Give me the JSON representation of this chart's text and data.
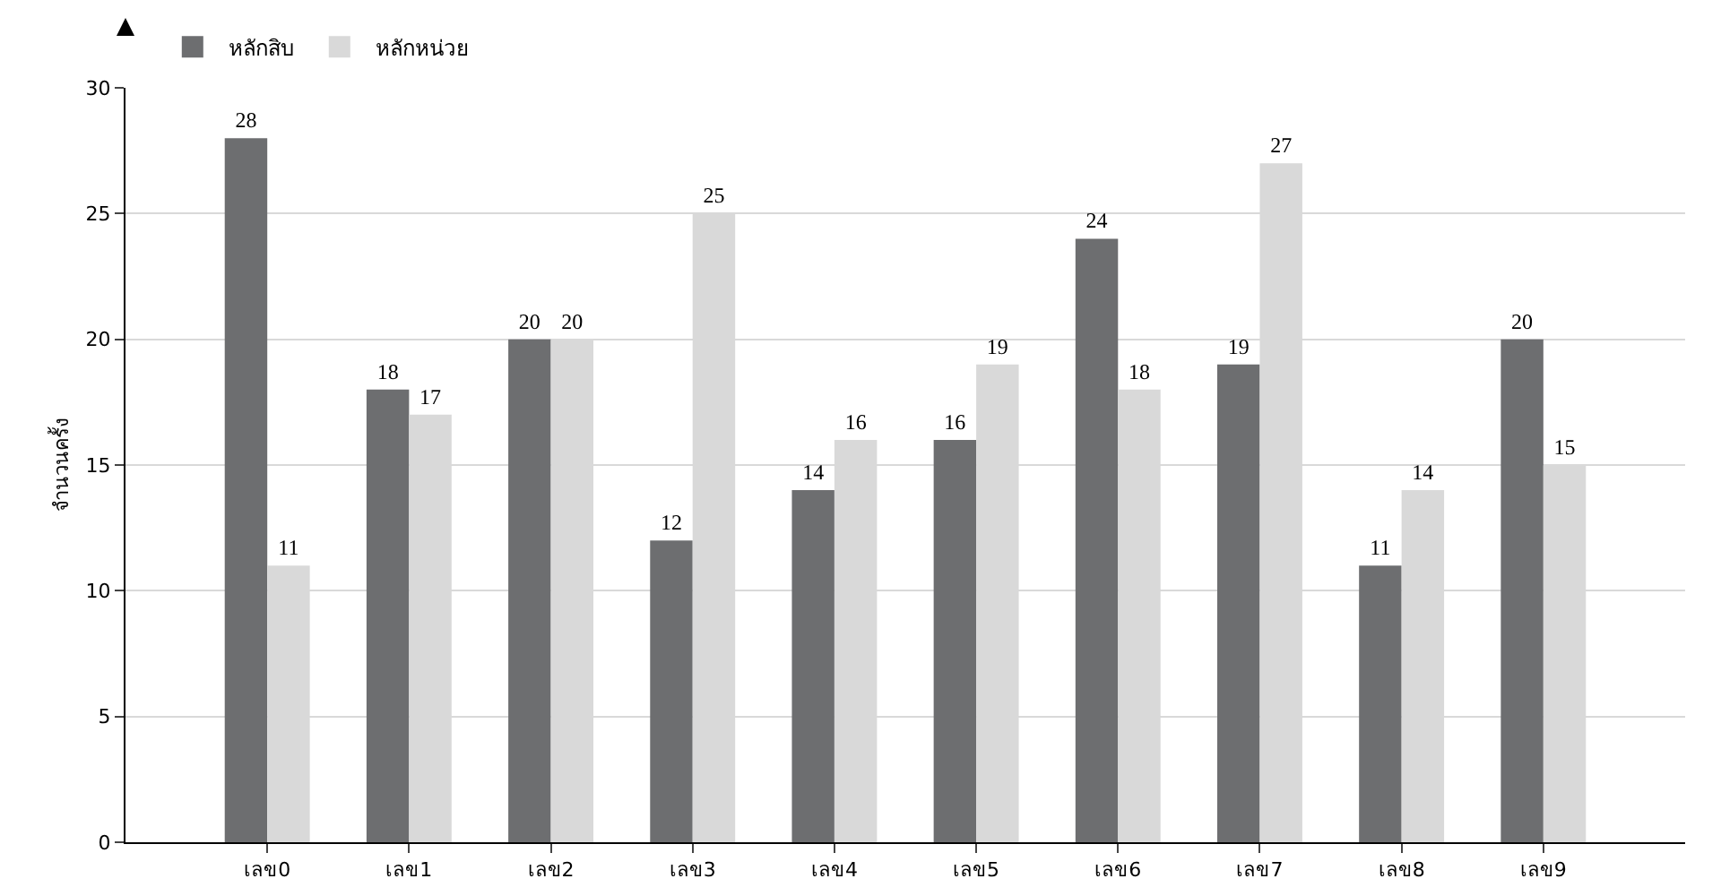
{
  "chart_data": {
    "type": "bar",
    "ylabel": "จำนวนครั้ง",
    "categories": [
      "เลข0",
      "เลข1",
      "เลข2",
      "เลข3",
      "เลข4",
      "เลข5",
      "เลข6",
      "เลข7",
      "เลข8",
      "เลข9"
    ],
    "series": [
      {
        "name": "หลักสิบ",
        "color": "#6d6e70",
        "values": [
          28,
          18,
          20,
          12,
          14,
          16,
          24,
          19,
          11,
          20
        ]
      },
      {
        "name": "หลักหน่วย",
        "color": "#d9d9d9",
        "values": [
          11,
          17,
          20,
          25,
          16,
          19,
          18,
          27,
          14,
          15
        ]
      }
    ],
    "ylim": [
      0,
      30
    ],
    "yticks": [
      0,
      5,
      10,
      15,
      20,
      25,
      30
    ],
    "grid": "y",
    "legend": "top left",
    "data_labels": true
  }
}
